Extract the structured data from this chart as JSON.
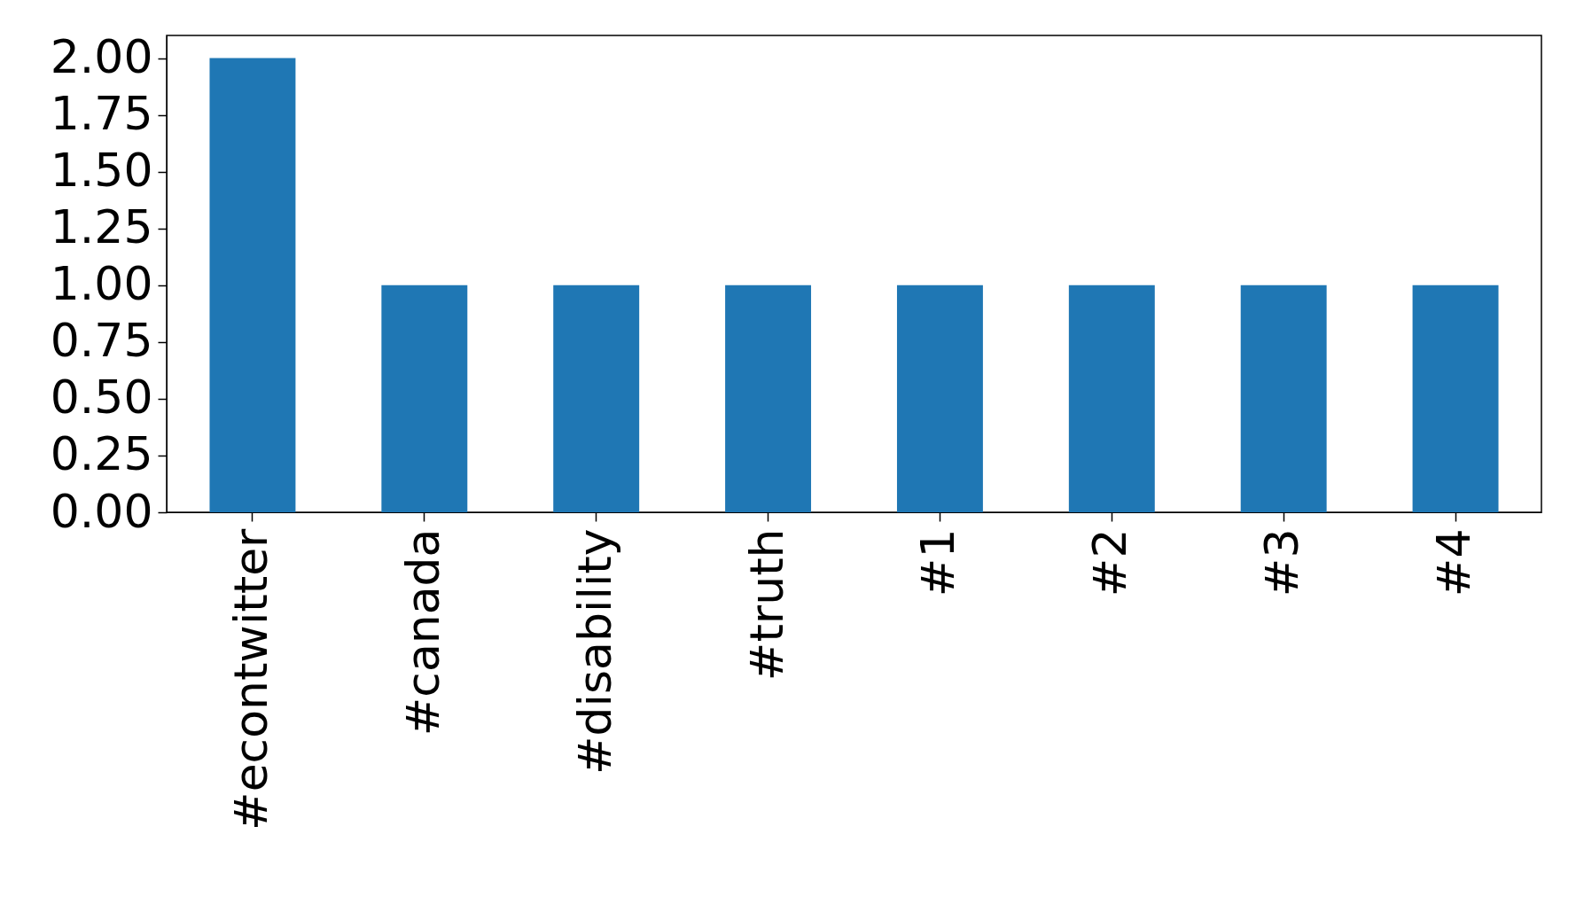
{
  "chart_data": {
    "type": "bar",
    "categories": [
      "#econtwitter",
      "#canada",
      "#disability",
      "#truth",
      "#1",
      "#2",
      "#3",
      "#4"
    ],
    "values": [
      2,
      1,
      1,
      1,
      1,
      1,
      1,
      1
    ],
    "color": "#1f77b4",
    "ylim": [
      0,
      2.1
    ],
    "yticks": [
      {
        "value": 0,
        "label": "0.00"
      },
      {
        "value": 0.25,
        "label": "0.25"
      },
      {
        "value": 0.5,
        "label": "0.50"
      },
      {
        "value": 0.75,
        "label": "0.75"
      },
      {
        "value": 1,
        "label": "1.00"
      },
      {
        "value": 1.25,
        "label": "1.25"
      },
      {
        "value": 1.5,
        "label": "1.50"
      },
      {
        "value": 1.75,
        "label": "1.75"
      },
      {
        "value": 2,
        "label": "2.00"
      }
    ],
    "grid": false
  }
}
